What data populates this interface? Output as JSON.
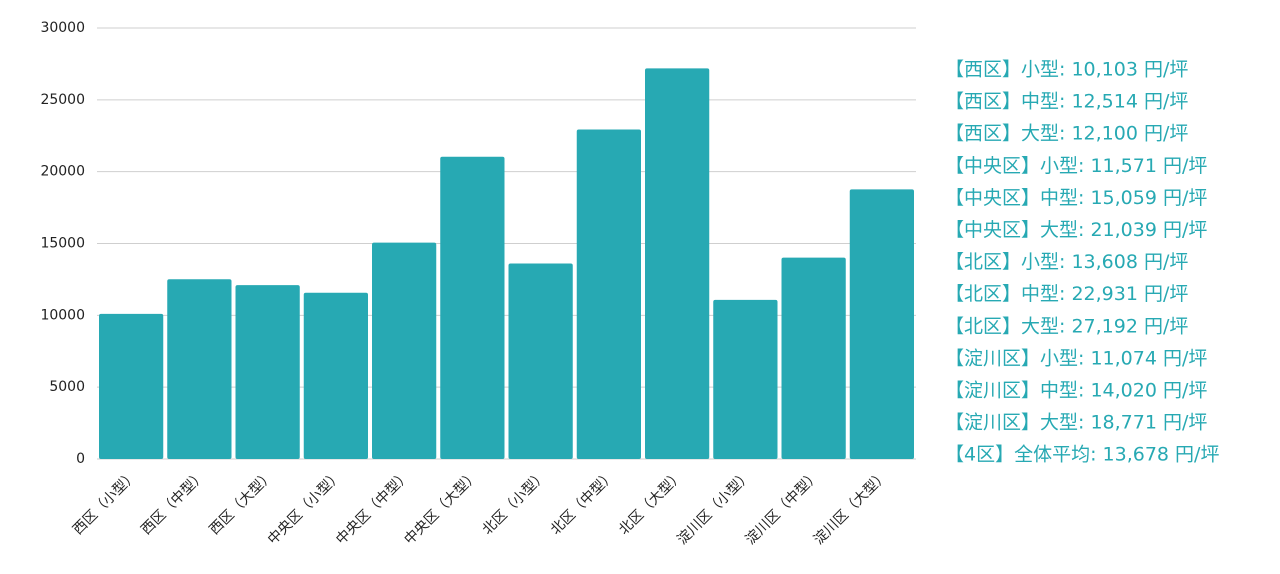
{
  "chart_data": {
    "type": "bar",
    "categories": [
      "西区（小型）",
      "西区（中型）",
      "西区（大型）",
      "中央区（小型）",
      "中央区（中型）",
      "中央区（大型）",
      "北区（小型）",
      "北区（中型）",
      "北区（大型）",
      "淀川区（小型）",
      "淀川区（中型）",
      "淀川区（大型）"
    ],
    "values": [
      10103,
      12514,
      12100,
      11571,
      15059,
      21039,
      13608,
      22931,
      27192,
      11074,
      14020,
      18771
    ],
    "color": "#27a9b3",
    "ylim": [
      0,
      30000
    ],
    "yticks": [
      0,
      5000,
      10000,
      15000,
      20000,
      25000,
      30000
    ],
    "grid": true,
    "annotations": [
      "【西区】小型: 10,103 円/坪",
      "【西区】中型: 12,514 円/坪",
      "【西区】大型: 12,100 円/坪",
      "【中央区】小型: 11,571 円/坪",
      "【中央区】中型: 15,059 円/坪",
      "【中央区】大型: 21,039 円/坪",
      "【北区】小型: 13,608 円/坪",
      "【北区】中型: 22,931 円/坪",
      "【北区】大型: 27,192 円/坪",
      "【淀川区】小型: 11,074 円/坪",
      "【淀川区】中型: 14,020 円/坪",
      "【淀川区】大型: 18,771 円/坪",
      "【4区】全体平均: 13,678 円/坪"
    ]
  }
}
